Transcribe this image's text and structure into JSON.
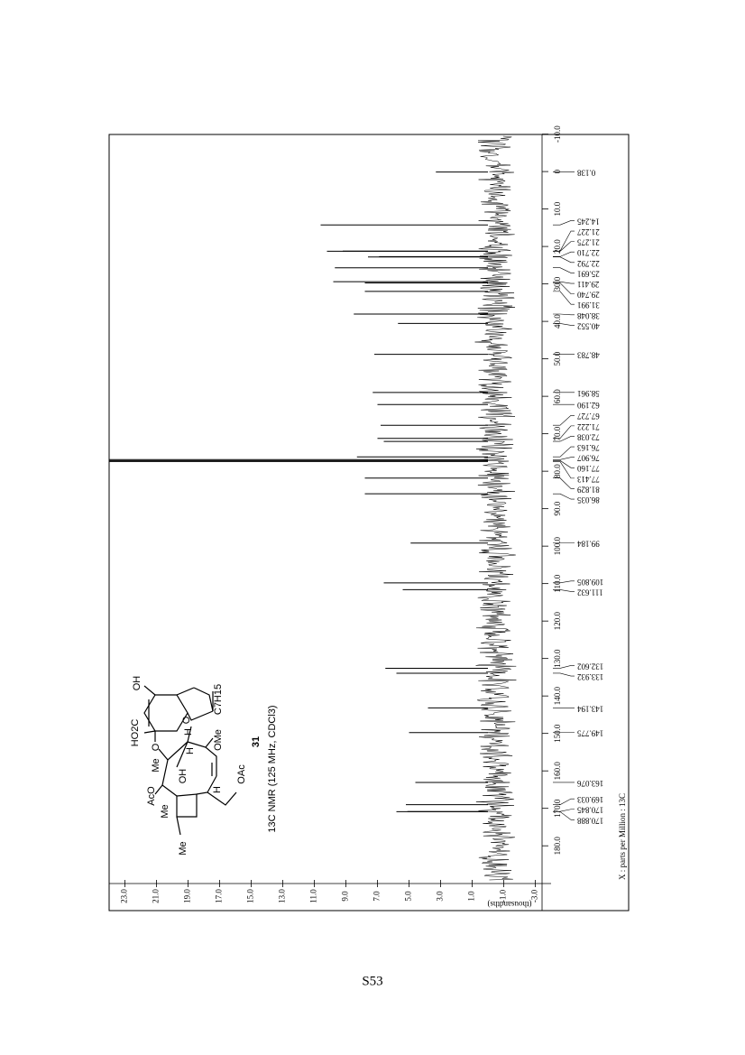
{
  "page_number": "S53",
  "compound": {
    "number": "31",
    "caption": "13C NMR (125 MHz, CDCl3)",
    "labels": [
      "OH",
      "HO2C",
      "O",
      "Me",
      "AcO",
      "Me",
      "Me",
      "OH",
      "H",
      "O",
      "H",
      "OMe",
      "H",
      "OAc",
      "C7H15"
    ]
  },
  "chart_data": {
    "type": "spectrum",
    "x_label": "X : parts per Million : 13C",
    "y_label": "(thousandths)",
    "x": [
      0.138,
      14.245,
      21.227,
      21.275,
      22.71,
      22.792,
      25.691,
      29.411,
      29.74,
      31.991,
      38.048,
      40.552,
      48.783,
      58.961,
      62.19,
      67.727,
      71.222,
      72.038,
      76.163,
      76.907,
      77.16,
      77.413,
      81.829,
      86.035,
      99.184,
      109.805,
      111.632,
      132.602,
      133.932,
      143.194,
      149.775,
      163.076,
      169.033,
      170.845,
      170.888
    ],
    "peak_labels": [
      "0.138",
      "14.245",
      "21.227",
      "21.275",
      "22.710",
      "22.792",
      "25.691",
      "29.411",
      "29.740",
      "31.991",
      "38.048",
      "40.552",
      "48.783",
      "58.961",
      "62.190",
      "67.727",
      "71.222",
      "72.038",
      "76.163",
      "76.907",
      "77.160",
      "77.413",
      "81.829",
      "86.035",
      "99.184",
      "109.805",
      "111.632",
      "132.602",
      "133.932",
      "143.194",
      "149.775",
      "163.076",
      "169.033",
      "170.845",
      "170.888"
    ],
    "values": [
      3.3,
      10.6,
      9.2,
      10.2,
      6.9,
      7.6,
      9.7,
      9.8,
      7.8,
      7.8,
      8.5,
      5.7,
      7.2,
      7.3,
      7.0,
      6.8,
      7.0,
      6.6,
      8.3,
      24,
      24,
      24,
      7.8,
      7.8,
      4.9,
      6.6,
      5.4,
      6.5,
      5.8,
      3.8,
      5.0,
      4.6,
      5.2,
      5.1,
      5.8
    ],
    "color": "#000000",
    "xlim": [
      197.3,
      -9.9
    ],
    "xticks": [
      {
        "value": -10,
        "label": "-10.0"
      },
      0,
      {
        "value": 10,
        "label": "10.0"
      },
      {
        "value": 20,
        "label": "20.0"
      },
      {
        "value": 30,
        "label": "30.0"
      },
      {
        "value": 40,
        "label": "40.0"
      },
      {
        "value": 50,
        "label": "50.0"
      },
      {
        "value": 60,
        "label": "60.0"
      },
      {
        "value": 70,
        "label": "70.0"
      },
      {
        "value": 80,
        "label": "80.0"
      },
      {
        "value": 90,
        "label": "90.0"
      },
      {
        "value": 100,
        "label": "100.0"
      },
      {
        "value": 110,
        "label": "110.0"
      },
      {
        "value": 120,
        "label": "120.0"
      },
      {
        "value": 130,
        "label": "130.0"
      },
      {
        "value": 140,
        "label": "140.0"
      },
      {
        "value": 150,
        "label": "150.0"
      },
      {
        "value": 160,
        "label": "160.0"
      },
      {
        "value": 170,
        "label": "170.0"
      },
      {
        "value": 180,
        "label": "180.0"
      }
    ],
    "ylim": [
      -4,
      24
    ],
    "yticks": [
      {
        "value": -3,
        "label": "-3.0"
      },
      {
        "value": -1,
        "label": "-1.0"
      },
      {
        "value": 1,
        "label": "1.0"
      },
      {
        "value": 3,
        "label": "3.0"
      },
      {
        "value": 5,
        "label": "5.0"
      },
      {
        "value": 7,
        "label": "7.0"
      },
      {
        "value": 9,
        "label": "9.0"
      },
      {
        "value": 11,
        "label": "11.0"
      },
      {
        "value": 13,
        "label": "13.0"
      },
      {
        "value": 15,
        "label": "15.0"
      },
      {
        "value": 17,
        "label": "17.0"
      },
      {
        "value": 19,
        "label": "19.0"
      },
      {
        "value": 21,
        "label": "21.0"
      },
      {
        "value": 23,
        "label": "23.0"
      }
    ]
  }
}
